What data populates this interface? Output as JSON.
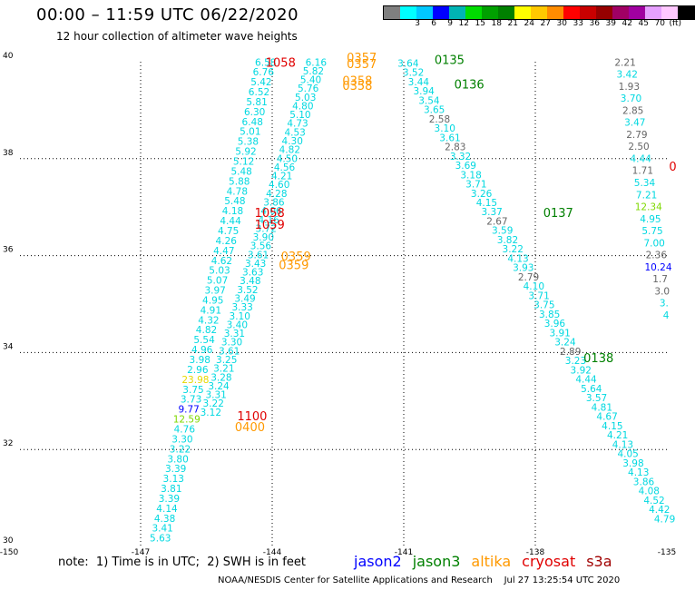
{
  "title": "00:00 – 11:59 UTC 06/22/2020",
  "subtitle": "12 hour collection of altimeter wave heights",
  "colorbar": {
    "colors": [
      "#7f7f7f",
      "#00ffff",
      "#00c8ff",
      "#0000ff",
      "#00b4b4",
      "#00dc00",
      "#00a000",
      "#008000",
      "#ffff00",
      "#ffc800",
      "#ff8c00",
      "#ff0000",
      "#c80000",
      "#960000",
      "#a00064",
      "#a000a0",
      "#e6a0ff",
      "#ffc8ff",
      "#000000"
    ],
    "labels": [
      "3",
      "6",
      "9",
      "12",
      "15",
      "18",
      "21",
      "24",
      "27",
      "30",
      "33",
      "36",
      "39",
      "42",
      "45",
      "70",
      "(ft)"
    ],
    "label_slots": [
      1,
      2,
      3,
      4,
      5,
      6,
      7,
      8,
      9,
      10,
      11,
      12,
      13,
      14,
      15,
      16,
      17
    ]
  },
  "axes": {
    "x_ticks": [
      "-150",
      "-147",
      "-144",
      "-141",
      "-138",
      "-135"
    ],
    "y_ticks": [
      "40",
      "38",
      "36",
      "34",
      "32",
      "30"
    ],
    "lon_range": [
      -150,
      -135
    ],
    "lat_range": [
      30,
      40
    ]
  },
  "track_a": {
    "values": [
      "6.58",
      "6.76",
      "5.42",
      "6.52",
      "5.81",
      "6.30",
      "6.48",
      "5.01",
      "5.38",
      "5.92",
      "5.12",
      "5.48",
      "5.88",
      "4.78",
      "5.48",
      "4.18",
      "4.44",
      "4.75",
      "4.26",
      "4.47",
      "4.62",
      "5.03",
      "5.07",
      "3.97",
      "4.95",
      "4.91",
      "4.32",
      "4.82",
      "5.54",
      "4.96",
      "3.98",
      "2.96",
      "23.98",
      "3.75",
      "3.73",
      "9.77",
      "12.59",
      "4.76",
      "3.30",
      "3.22",
      "3.80",
      "3.39",
      "3.13",
      "3.81",
      "3.39",
      "4.14",
      "4.38",
      "3.41",
      "5.63"
    ],
    "colors": [
      "#00d8e0",
      "#00d8e0",
      "#00d8e0",
      "#00d8e0",
      "#00d8e0",
      "#00d8e0",
      "#00d8e0",
      "#00d8e0",
      "#00d8e0",
      "#00d8e0",
      "#00d8e0",
      "#00d8e0",
      "#00d8e0",
      "#00d8e0",
      "#00d8e0",
      "#00d8e0",
      "#00d8e0",
      "#00d8e0",
      "#00d8e0",
      "#00d8e0",
      "#00d8e0",
      "#00d8e0",
      "#00d8e0",
      "#00d8e0",
      "#00d8e0",
      "#00d8e0",
      "#00d8e0",
      "#00d8e0",
      "#00d8e0",
      "#00d8e0",
      "#00d8e0",
      "#00d8e0",
      "#e6d800",
      "#00d8e0",
      "#00d8e0",
      "#0000ff",
      "#7ed800",
      "#00d8e0",
      "#00d8e0",
      "#00d8e0",
      "#00d8e0",
      "#00d8e0",
      "#00d8e0",
      "#00d8e0",
      "#00d8e0",
      "#00d8e0",
      "#00d8e0",
      "#00d8e0",
      "#00d8e0"
    ],
    "lon_start": -144.15,
    "lat_start": 39.92,
    "lon_end": -146.55,
    "lat_end": 30.1
  },
  "track_b": {
    "values": [
      "6.16",
      "5.82",
      "5.40",
      "5.76",
      "5.03",
      "4.80",
      "5.10",
      "4.73",
      "4.53",
      "4.30",
      "4.82",
      "4.50",
      "4.56",
      "4.21",
      "4.60",
      "4.28",
      "3.86",
      "4.06",
      "4.16",
      "3.72",
      "3.90",
      "3.56",
      "3.61",
      "3.43",
      "3.63",
      "3.48",
      "3.52",
      "3.49",
      "3.33",
      "3.10",
      "3.40",
      "3.31",
      "3.30",
      "3.61",
      "3.25",
      "3.21",
      "3.28",
      "3.24",
      "3.31",
      "3.22",
      "3.12"
    ],
    "color": "#00d8e0",
    "lon_start": -143.0,
    "lat_start": 39.92,
    "lon_end": -145.4,
    "lat_end": 32.7
  },
  "track_c": {
    "values": [
      "3.64",
      "3.52",
      "3.44",
      "3.94",
      "3.54",
      "3.65",
      "2.58",
      "3.10",
      "3.61",
      "2.83",
      "3.32",
      "3.69",
      "3.18",
      "3.71",
      "3.26",
      "4.15",
      "3.37",
      "2.67",
      "3.59",
      "3.82",
      "3.22",
      "4.13",
      "3.93",
      "2.79",
      "4.10",
      "3.71",
      "3.75",
      "3.85",
      "3.96",
      "3.91",
      "3.24",
      "2.89",
      "3.23",
      "3.92",
      "4.44",
      "5.64",
      "3.57",
      "4.81",
      "4.67",
      "4.15",
      "4.21",
      "4.13",
      "4.05",
      "3.98",
      "4.13",
      "3.86",
      "4.08",
      "4.52",
      "4.42",
      "4.79"
    ],
    "colors": [
      "#00d8e0",
      "#00d8e0",
      "#00d8e0",
      "#00d8e0",
      "#00d8e0",
      "#00d8e0",
      "#666666",
      "#00d8e0",
      "#00d8e0",
      "#666666",
      "#00d8e0",
      "#00d8e0",
      "#00d8e0",
      "#00d8e0",
      "#00d8e0",
      "#00d8e0",
      "#00d8e0",
      "#666666",
      "#00d8e0",
      "#00d8e0",
      "#00d8e0",
      "#00d8e0",
      "#00d8e0",
      "#666666",
      "#00d8e0",
      "#00d8e0",
      "#00d8e0",
      "#00d8e0",
      "#00d8e0",
      "#00d8e0",
      "#00d8e0",
      "#666666",
      "#00d8e0",
      "#00d8e0",
      "#00d8e0",
      "#00d8e0",
      "#00d8e0",
      "#00d8e0",
      "#00d8e0",
      "#00d8e0",
      "#00d8e0",
      "#00d8e0",
      "#00d8e0",
      "#00d8e0",
      "#00d8e0",
      "#00d8e0",
      "#00d8e0",
      "#00d8e0",
      "#00d8e0",
      "#00d8e0"
    ],
    "lon_start": -140.9,
    "lat_start": 39.9,
    "lon_end": -135.05,
    "lat_end": 30.5
  },
  "track_d": {
    "values": [
      "2.21",
      "3.42",
      "1.93",
      "3.70",
      "2.85",
      "3.47",
      "2.79",
      "2.50",
      "4.44",
      "1.71",
      "5.34",
      "7.21",
      "12.34",
      "4.95",
      "5.75",
      "7.00",
      "2.36",
      "10.24",
      "1.7",
      "3.0",
      "3.",
      "4"
    ],
    "colors": [
      "#666666",
      "#00d8e0",
      "#666666",
      "#00d8e0",
      "#666666",
      "#00d8e0",
      "#666666",
      "#666666",
      "#00d8e0",
      "#666666",
      "#00d8e0",
      "#00d8e0",
      "#7ed800",
      "#00d8e0",
      "#00d8e0",
      "#00d8e0",
      "#666666",
      "#0000ff",
      "#666666",
      "#666666",
      "#00d8e0",
      "#00d8e0"
    ],
    "lon_start": -135.95,
    "lat_start": 39.92,
    "lon_end": -135.02,
    "lat_end": 34.7
  },
  "time_labels": [
    {
      "text": "1058",
      "color": "#e00000",
      "lon": -144.15,
      "lat": 39.9
    },
    {
      "text": "0357",
      "color": "#ff9900",
      "lon": -142.3,
      "lat": 40.0
    },
    {
      "text": "0357",
      "color": "#ff9900",
      "lon": -142.3,
      "lat": 39.87
    },
    {
      "text": "0358",
      "color": "#ff9900",
      "lon": -142.4,
      "lat": 39.52
    },
    {
      "text": "0358",
      "color": "#ff9900",
      "lon": -142.4,
      "lat": 39.42
    },
    {
      "text": "0135",
      "color": "#008000",
      "lon": -140.3,
      "lat": 39.95
    },
    {
      "text": "0136",
      "color": "#008000",
      "lon": -139.85,
      "lat": 39.45
    },
    {
      "text": "1058",
      "color": "#e00000",
      "lon": -144.4,
      "lat": 36.8
    },
    {
      "text": "1059",
      "color": "#e00000",
      "lon": -144.4,
      "lat": 36.55
    },
    {
      "text": "0137",
      "color": "#008000",
      "lon": -137.82,
      "lat": 36.8
    },
    {
      "text": "0359",
      "color": "#ff9900",
      "lon": -143.8,
      "lat": 35.9
    },
    {
      "text": "0359",
      "color": "#ff9900",
      "lon": -143.85,
      "lat": 35.72
    },
    {
      "text": "0138",
      "color": "#008000",
      "lon": -136.9,
      "lat": 33.8
    },
    {
      "text": "1100",
      "color": "#e00000",
      "lon": -144.8,
      "lat": 32.6
    },
    {
      "text": "0400",
      "color": "#ff9900",
      "lon": -144.85,
      "lat": 32.38
    },
    {
      "text": "0",
      "color": "#e00000",
      "lon": -134.95,
      "lat": 37.75
    }
  ],
  "note": "note:  1) Time is in UTC;  2) SWH is in feet",
  "legend": [
    {
      "label": "jason2",
      "color": "#0000ff"
    },
    {
      "label": "jason3",
      "color": "#008000"
    },
    {
      "label": "altika",
      "color": "#ff9900"
    },
    {
      "label": "cryosat",
      "color": "#e00000"
    },
    {
      "label": "s3a",
      "color": "#a00000"
    }
  ],
  "credit": "NOAA/NESDIS Center for Satellite Applications and Research    Jul 27 13:25:54 UTC 2020"
}
